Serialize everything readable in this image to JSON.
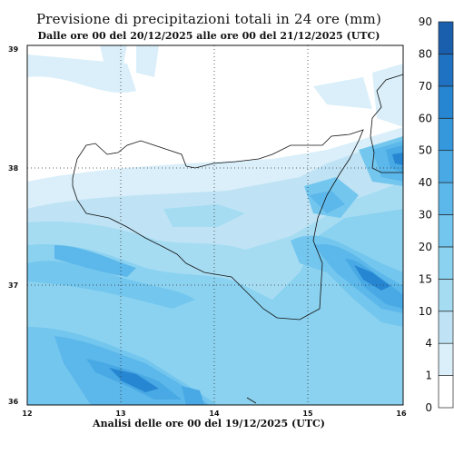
{
  "header": {
    "title": "Previsione di precipitazioni totali in 24 ore (mm)",
    "subtitle": "Dalle ore 00 del 20/12/2025 alle ore 00 del 21/12/2025 (UTC)",
    "footer": "Analisi delle ore 00 del 19/12/2025 (UTC)"
  },
  "map": {
    "lon_labels": [
      "12",
      "13",
      "14",
      "15",
      "16"
    ],
    "lat_labels": [
      "39",
      "38",
      "37",
      "36"
    ],
    "grid": true,
    "coastline": "Sicily (south-east part)"
  },
  "colorbar": {
    "levels": [
      "0",
      "1",
      "4",
      "10",
      "15",
      "20",
      "30",
      "40",
      "50",
      "60",
      "70",
      "80",
      "90"
    ],
    "colors": [
      "#ffffff",
      "#daeff9",
      "#bfe3f5",
      "#a6dcf2",
      "#8bd2f0",
      "#73c6ee",
      "#5cb7ea",
      "#48a9e4",
      "#3598dd",
      "#2786d2",
      "#1f72c2",
      "#1a5fae"
    ]
  }
}
